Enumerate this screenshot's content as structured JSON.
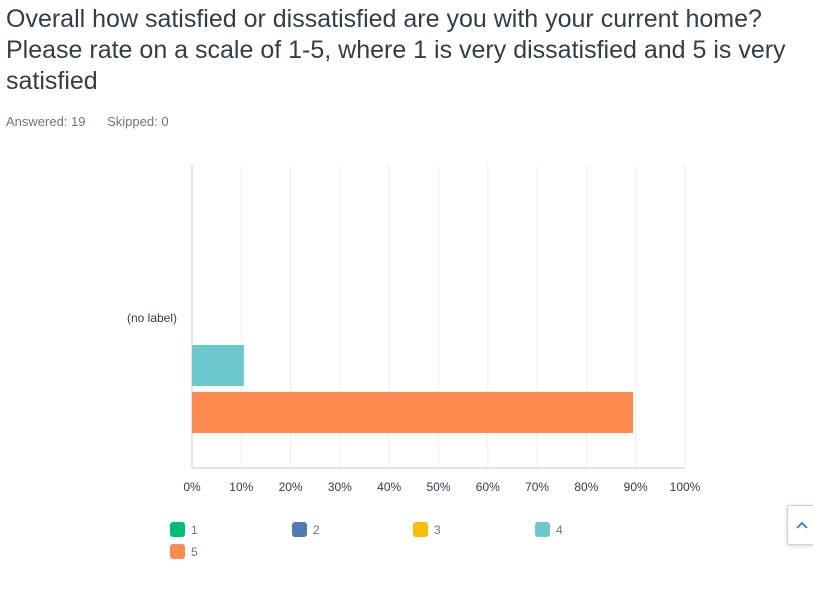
{
  "question": {
    "title": "Overall how satisfied or dissatisfied are you with your current home? Please rate on a scale of 1-5, where 1 is very dissatisfied and 5 is very satisfied",
    "answered": "Answered: 19",
    "skipped": "Skipped: 0"
  },
  "chart_data": {
    "type": "bar",
    "orientation": "horizontal",
    "categories": [
      "(no label)"
    ],
    "series": [
      {
        "name": "1",
        "values": [
          0
        ],
        "color": "#00bf6f"
      },
      {
        "name": "2",
        "values": [
          0
        ],
        "color": "#507cb6"
      },
      {
        "name": "3",
        "values": [
          0
        ],
        "color": "#f9be00"
      },
      {
        "name": "4",
        "values": [
          10.53
        ],
        "color": "#6bc8cd"
      },
      {
        "name": "5",
        "values": [
          89.47
        ],
        "color": "#ff8b4f"
      }
    ],
    "xlim": [
      0,
      100
    ],
    "xticks": [
      "0%",
      "10%",
      "20%",
      "30%",
      "40%",
      "50%",
      "60%",
      "70%",
      "80%",
      "90%",
      "100%"
    ],
    "grid": true,
    "legend": "bottom"
  }
}
